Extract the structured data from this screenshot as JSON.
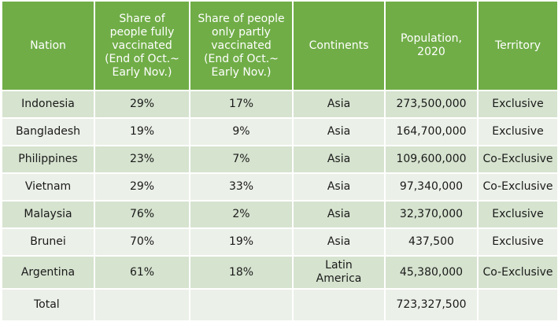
{
  "table": {
    "columns": [
      "Nation",
      "Share of people fully vaccinated (End of Oct.~ Early Nov.)",
      "Share of people only partly vaccinated (End of Oct.~ Early Nov.)",
      "Continents",
      "Population, 2020",
      "Territory"
    ],
    "header_lines": [
      [
        "Nation"
      ],
      [
        "Share of",
        "people fully",
        "vaccinated",
        "(End of Oct.~",
        "Early Nov.)"
      ],
      [
        "Share of people",
        "only partly",
        "vaccinated",
        "(End of Oct.~",
        "Early Nov.)"
      ],
      [
        "Continents"
      ],
      [
        "Population,",
        "2020"
      ],
      [
        "Territory"
      ]
    ],
    "rows": [
      {
        "nation": "Indonesia",
        "fully": "29%",
        "partly": "17%",
        "continent": "Asia",
        "continent_lines": [
          "Asia"
        ],
        "population": "273,500,000",
        "territory": "Exclusive"
      },
      {
        "nation": "Bangladesh",
        "fully": "19%",
        "partly": "9%",
        "continent": "Asia",
        "continent_lines": [
          "Asia"
        ],
        "population": "164,700,000",
        "territory": "Exclusive"
      },
      {
        "nation": "Philippines",
        "fully": "23%",
        "partly": "7%",
        "continent": "Asia",
        "continent_lines": [
          "Asia"
        ],
        "population": "109,600,000",
        "territory": "Co-Exclusive"
      },
      {
        "nation": "Vietnam",
        "fully": "29%",
        "partly": "33%",
        "continent": "Asia",
        "continent_lines": [
          "Asia"
        ],
        "population": "97,340,000",
        "territory": "Co-Exclusive"
      },
      {
        "nation": "Malaysia",
        "fully": "76%",
        "partly": "2%",
        "continent": "Asia",
        "continent_lines": [
          "Asia"
        ],
        "population": "32,370,000",
        "territory": "Exclusive"
      },
      {
        "nation": "Brunei",
        "fully": "70%",
        "partly": "19%",
        "continent": "Asia",
        "continent_lines": [
          "Asia"
        ],
        "population": "437,500",
        "territory": "Exclusive"
      },
      {
        "nation": "Argentina",
        "fully": "61%",
        "partly": "18%",
        "continent": "Latin America",
        "continent_lines": [
          "Latin",
          "America"
        ],
        "population": "45,380,000",
        "territory": "Co-Exclusive"
      }
    ],
    "total": {
      "label": "Total",
      "population": "723,327,500"
    }
  }
}
